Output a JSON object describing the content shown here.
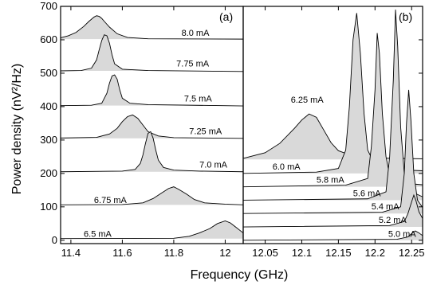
{
  "chart_data": {
    "type": "line",
    "ylabel": "Power density (nV²/Hz)",
    "xlabel": "Frequency (GHz)",
    "fill_color": "#d9d9d9",
    "line_color": "#000000",
    "y_ticks": [
      0,
      100,
      200,
      300,
      400,
      500,
      600,
      700
    ],
    "ylim": [
      -10,
      700
    ],
    "panels": [
      {
        "label": "(a)",
        "xlim": [
          11.36,
          12.07
        ],
        "x_ticks": [
          11.4,
          11.6,
          11.8,
          12
        ],
        "x_tick_labels": [
          "11.4",
          "11.6",
          "11.8",
          "12"
        ],
        "series": [
          {
            "name": "8.0 mA",
            "baseline": 602,
            "label_x": 11.83,
            "label_y": 612,
            "points": [
              [
                11.36,
                606
              ],
              [
                11.39,
                612
              ],
              [
                11.42,
                622
              ],
              [
                11.45,
                640
              ],
              [
                11.47,
                655
              ],
              [
                11.49,
                668
              ],
              [
                11.5,
                672
              ],
              [
                11.51,
                670
              ],
              [
                11.52,
                664
              ],
              [
                11.53,
                655
              ],
              [
                11.55,
                638
              ],
              [
                11.58,
                618
              ],
              [
                11.62,
                607
              ],
              [
                11.7,
                603
              ],
              [
                12.07,
                602
              ]
            ]
          },
          {
            "name": "7.75 mA",
            "baseline": 507,
            "label_x": 11.81,
            "label_y": 520,
            "points": [
              [
                11.36,
                507
              ],
              [
                11.44,
                508
              ],
              [
                11.48,
                515
              ],
              [
                11.5,
                540
              ],
              [
                11.51,
                570
              ],
              [
                11.52,
                598
              ],
              [
                11.53,
                615
              ],
              [
                11.54,
                612
              ],
              [
                11.55,
                590
              ],
              [
                11.56,
                555
              ],
              [
                11.57,
                528
              ],
              [
                11.6,
                512
              ],
              [
                11.7,
                508
              ],
              [
                12.07,
                505
              ]
            ]
          },
          {
            "name": "7.5 mA",
            "baseline": 403,
            "label_x": 11.84,
            "label_y": 415,
            "points": [
              [
                11.36,
                403
              ],
              [
                11.48,
                404
              ],
              [
                11.52,
                410
              ],
              [
                11.54,
                440
              ],
              [
                11.55,
                470
              ],
              [
                11.56,
                492
              ],
              [
                11.57,
                495
              ],
              [
                11.58,
                482
              ],
              [
                11.59,
                450
              ],
              [
                11.6,
                425
              ],
              [
                11.63,
                410
              ],
              [
                11.7,
                406
              ],
              [
                12.07,
                402
              ]
            ]
          },
          {
            "name": "7.25 mA",
            "baseline": 305,
            "label_x": 11.86,
            "label_y": 318,
            "points": [
              [
                11.36,
                306
              ],
              [
                11.5,
                308
              ],
              [
                11.55,
                318
              ],
              [
                11.58,
                335
              ],
              [
                11.6,
                355
              ],
              [
                11.62,
                370
              ],
              [
                11.64,
                375
              ],
              [
                11.66,
                365
              ],
              [
                11.68,
                345
              ],
              [
                11.7,
                325
              ],
              [
                11.74,
                312
              ],
              [
                11.8,
                307
              ],
              [
                12.07,
                305
              ]
            ]
          },
          {
            "name": "7.0 mA",
            "baseline": 205,
            "label_x": 11.9,
            "label_y": 218,
            "points": [
              [
                11.36,
                205
              ],
              [
                11.6,
                207
              ],
              [
                11.65,
                212
              ],
              [
                11.67,
                230
              ],
              [
                11.68,
                255
              ],
              [
                11.69,
                290
              ],
              [
                11.7,
                320
              ],
              [
                11.71,
                325
              ],
              [
                11.72,
                305
              ],
              [
                11.73,
                270
              ],
              [
                11.74,
                240
              ],
              [
                11.76,
                218
              ],
              [
                11.8,
                210
              ],
              [
                11.9,
                207
              ],
              [
                12.07,
                205
              ]
            ]
          },
          {
            "name": "6.75 mA",
            "baseline": 106,
            "label_x": 11.49,
            "label_y": 112,
            "points": [
              [
                11.36,
                106
              ],
              [
                11.6,
                107
              ],
              [
                11.68,
                112
              ],
              [
                11.72,
                125
              ],
              [
                11.75,
                140
              ],
              [
                11.78,
                155
              ],
              [
                11.8,
                160
              ],
              [
                11.82,
                152
              ],
              [
                11.85,
                138
              ],
              [
                11.88,
                122
              ],
              [
                11.92,
                112
              ],
              [
                12.0,
                108
              ],
              [
                12.07,
                106
              ]
            ]
          },
          {
            "name": "6.5 mA",
            "baseline": 5,
            "label_x": 11.45,
            "label_y": 10,
            "points": [
              [
                11.36,
                5
              ],
              [
                11.8,
                6
              ],
              [
                11.86,
                12
              ],
              [
                11.9,
                22
              ],
              [
                11.94,
                35
              ],
              [
                11.97,
                50
              ],
              [
                12.0,
                58
              ],
              [
                12.02,
                52
              ],
              [
                12.04,
                40
              ],
              [
                12.06,
                28
              ],
              [
                12.07,
                22
              ]
            ]
          }
        ]
      },
      {
        "label": "(b)",
        "xlim": [
          12.02,
          12.265
        ],
        "x_ticks": [
          12.05,
          12.1,
          12.15,
          12.2,
          12.25
        ],
        "x_tick_labels": [
          "12.05",
          "12.1",
          "12.15",
          "12.2",
          "12.25"
        ],
        "series": [
          {
            "name": "6.25 mA",
            "baseline": 242,
            "label_x": 12.085,
            "label_y": 412,
            "points": [
              [
                12.02,
                245
              ],
              [
                12.05,
                262
              ],
              [
                12.07,
                290
              ],
              [
                12.09,
                335
              ],
              [
                12.1,
                360
              ],
              [
                12.11,
                378
              ],
              [
                12.12,
                368
              ],
              [
                12.13,
                330
              ],
              [
                12.14,
                292
              ],
              [
                12.15,
                268
              ],
              [
                12.17,
                252
              ],
              [
                12.2,
                246
              ],
              [
                12.265,
                244
              ]
            ]
          },
          {
            "name": "6.0 mA",
            "baseline": 200,
            "label_x": 12.06,
            "label_y": 212,
            "points": [
              [
                12.02,
                200
              ],
              [
                12.12,
                204
              ],
              [
                12.15,
                215
              ],
              [
                12.16,
                270
              ],
              [
                12.165,
                400
              ],
              [
                12.17,
                600
              ],
              [
                12.175,
                680
              ],
              [
                12.18,
                560
              ],
              [
                12.185,
                380
              ],
              [
                12.19,
                270
              ],
              [
                12.2,
                225
              ],
              [
                12.22,
                212
              ],
              [
                12.265,
                208
              ]
            ]
          },
          {
            "name": "5.8 mA",
            "baseline": 160,
            "label_x": 12.12,
            "label_y": 172,
            "points": [
              [
                12.02,
                160
              ],
              [
                12.16,
                165
              ],
              [
                12.19,
                185
              ],
              [
                12.195,
                280
              ],
              [
                12.2,
                450
              ],
              [
                12.203,
                620
              ],
              [
                12.206,
                560
              ],
              [
                12.21,
                380
              ],
              [
                12.215,
                250
              ],
              [
                12.22,
                195
              ],
              [
                12.235,
                172
              ],
              [
                12.265,
                166
              ]
            ]
          },
          {
            "name": "5.6 mA",
            "baseline": 120,
            "label_x": 12.17,
            "label_y": 132,
            "points": [
              [
                12.02,
                120
              ],
              [
                12.19,
                124
              ],
              [
                12.215,
                145
              ],
              [
                12.22,
                250
              ],
              [
                12.225,
                480
              ],
              [
                12.228,
                690
              ],
              [
                12.231,
                580
              ],
              [
                12.235,
                340
              ],
              [
                12.24,
                200
              ],
              [
                12.245,
                150
              ],
              [
                12.265,
                130
              ]
            ]
          },
          {
            "name": "5.4 mA",
            "baseline": 80,
            "label_x": 12.195,
            "label_y": 92,
            "points": [
              [
                12.02,
                80
              ],
              [
                12.21,
                84
              ],
              [
                12.235,
                100
              ],
              [
                12.24,
                200
              ],
              [
                12.243,
                350
              ],
              [
                12.246,
                450
              ],
              [
                12.249,
                360
              ],
              [
                12.253,
                200
              ],
              [
                12.258,
                120
              ],
              [
                12.265,
                98
              ]
            ]
          },
          {
            "name": "5.2 mA",
            "baseline": 40,
            "label_x": 12.205,
            "label_y": 52,
            "points": [
              [
                12.02,
                40
              ],
              [
                12.22,
                44
              ],
              [
                12.24,
                56
              ],
              [
                12.245,
                80
              ],
              [
                12.25,
                115
              ],
              [
                12.253,
                135
              ],
              [
                12.256,
                118
              ],
              [
                12.26,
                85
              ],
              [
                12.265,
                65
              ]
            ]
          },
          {
            "name": "5.0 mA",
            "baseline": 0,
            "label_x": 12.218,
            "label_y": 10,
            "points": [
              [
                12.02,
                0
              ],
              [
                12.23,
                3
              ],
              [
                12.245,
                10
              ],
              [
                12.25,
                20
              ],
              [
                12.255,
                28
              ],
              [
                12.26,
                22
              ],
              [
                12.265,
                14
              ]
            ]
          }
        ]
      }
    ]
  }
}
